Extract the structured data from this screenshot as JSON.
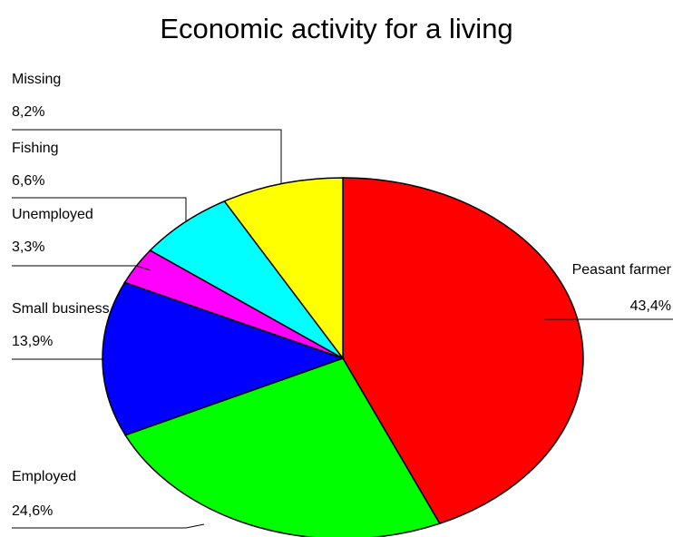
{
  "chart_data": {
    "type": "pie",
    "title": "Economic activity for a living",
    "categories": [
      "Peasant farmer",
      "Employed",
      "Small business",
      "Unemployed",
      "Fishing",
      "Missing"
    ],
    "values": [
      43.4,
      24.6,
      13.9,
      3.3,
      6.6,
      8.2
    ],
    "value_labels": [
      "43,4%",
      "24,6%",
      "13,9%",
      "3,3%",
      "6,6%",
      "8,2%"
    ],
    "colors": [
      "#ff0000",
      "#00ff00",
      "#0000ff",
      "#ff00ff",
      "#00ffff",
      "#ffff00"
    ]
  }
}
